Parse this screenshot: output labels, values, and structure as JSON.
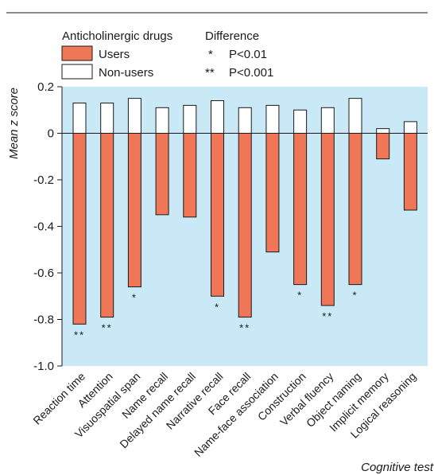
{
  "chart_data": {
    "type": "bar",
    "title": "",
    "xlabel": "Cognitive test",
    "ylabel": "Mean z score",
    "ylim": [
      -1.0,
      0.2
    ],
    "yticks": [
      "0.2",
      "0",
      "-0.2",
      "-0.4",
      "-0.6",
      "-0.8",
      "-1.0"
    ],
    "grid": false,
    "categories": [
      "Reaction time",
      "Attention",
      "Visuospatial span",
      "Name recall",
      "Delayed name recall",
      "Narrative recall",
      "Face recall",
      "Name-face association",
      "Construction",
      "Verbal fluency",
      "Object naming",
      "Implicit memory",
      "Logical reasoning"
    ],
    "series": [
      {
        "name": "Users",
        "values": [
          -0.82,
          -0.79,
          -0.66,
          -0.35,
          -0.36,
          -0.7,
          -0.79,
          -0.51,
          -0.65,
          -0.74,
          -0.65,
          -0.11,
          -0.33
        ]
      },
      {
        "name": "Non-users",
        "values": [
          0.13,
          0.13,
          0.15,
          0.11,
          0.12,
          0.14,
          0.11,
          0.12,
          0.1,
          0.11,
          0.15,
          0.02,
          0.05
        ]
      }
    ],
    "significance": [
      "**",
      "**",
      "*",
      "",
      "",
      "*",
      "**",
      "",
      "*",
      "**",
      "*",
      "",
      ""
    ],
    "legend": {
      "group_title": "Anticholinergic drugs",
      "diff_title": "Difference",
      "diff_items": [
        {
          "symbol": "*",
          "label": "P<0.01"
        },
        {
          "symbol": "**",
          "label": "P<0.001"
        }
      ]
    },
    "colors": {
      "users": "#ef7758",
      "non_users": "#ffffff",
      "plot_bg": "#c9e9f6",
      "axis": "#1a1a1a"
    }
  }
}
